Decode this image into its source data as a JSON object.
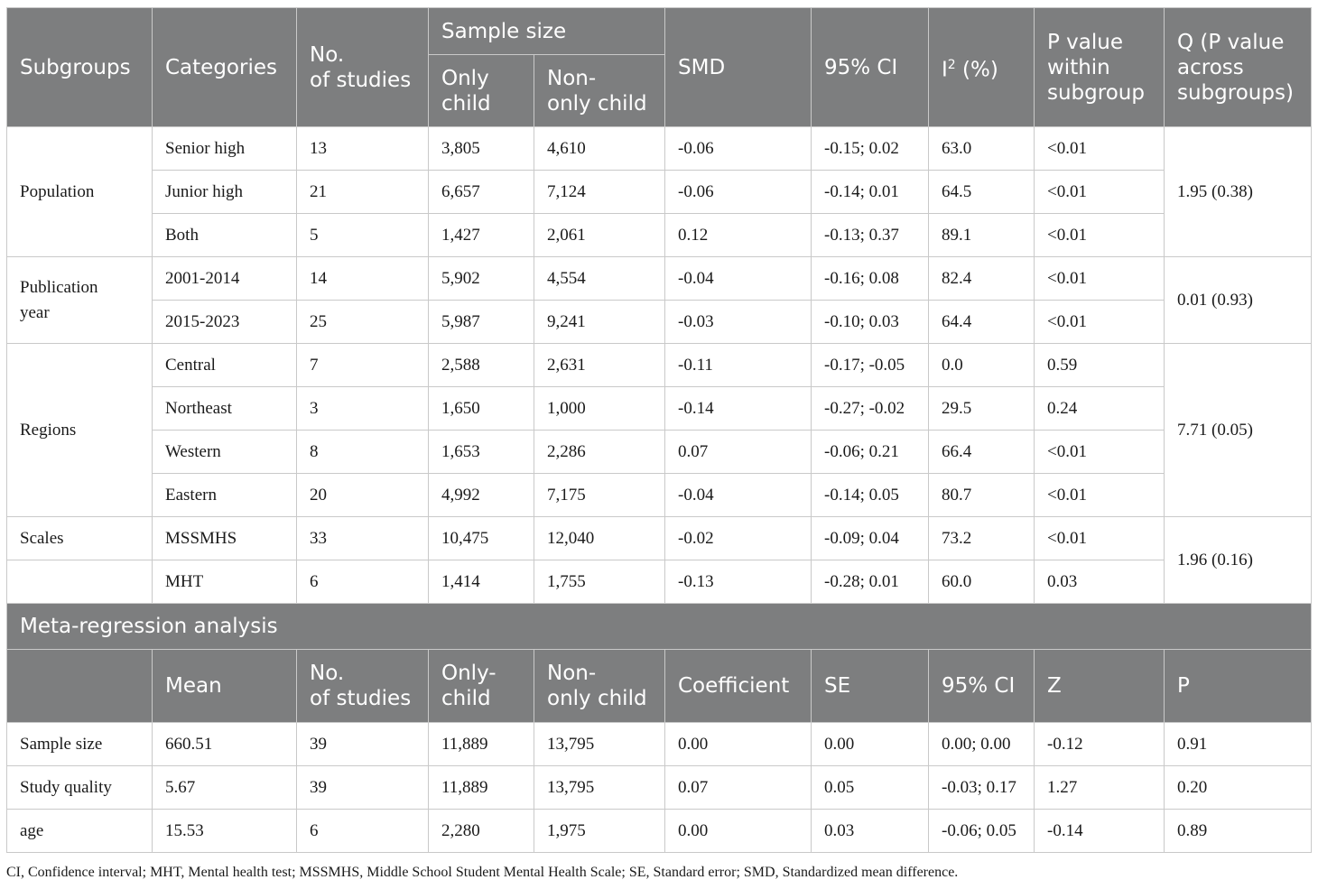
{
  "subgroup_header": {
    "subgroups": "Subgroups",
    "categories": "Categories",
    "no_of_studies": [
      "No.",
      "of studies"
    ],
    "sample_size": "Sample size",
    "only_child": [
      "Only",
      "child"
    ],
    "non_only_child": [
      "Non-",
      "only child"
    ],
    "smd": "SMD",
    "ci95": "95% CI",
    "i2": "I",
    "i2_sup": "2",
    "i2_unit": " (%)",
    "p_within": [
      "P value",
      "within",
      "subgroup"
    ],
    "q_across": [
      "Q (P value",
      "across",
      "subgroups)"
    ]
  },
  "subgroup_rows": [
    {
      "group": "Population",
      "category": "Senior high",
      "studies": "13",
      "only": "3,805",
      "non_only": "4,610",
      "smd": "-0.06",
      "ci": "-0.15; 0.02",
      "i2": "63.0",
      "p": "<0.01",
      "q": "1.95 (0.38)"
    },
    {
      "group": "",
      "category": "Junior high",
      "studies": "21",
      "only": "6,657",
      "non_only": "7,124",
      "smd": "-0.06",
      "ci": "-0.14; 0.01",
      "i2": "64.5",
      "p": "<0.01",
      "q": ""
    },
    {
      "group": "",
      "category": "Both",
      "studies": "5",
      "only": "1,427",
      "non_only": "2,061",
      "smd": "0.12",
      "ci": "-0.13; 0.37",
      "i2": "89.1",
      "p": "<0.01",
      "q": ""
    },
    {
      "group": "Publication year",
      "category": "2001-2014",
      "studies": "14",
      "only": "5,902",
      "non_only": "4,554",
      "smd": "-0.04",
      "ci": "-0.16; 0.08",
      "i2": "82.4",
      "p": "<0.01",
      "q": "0.01 (0.93)"
    },
    {
      "group": "",
      "category": "2015-2023",
      "studies": "25",
      "only": "5,987",
      "non_only": "9,241",
      "smd": "-0.03",
      "ci": "-0.10; 0.03",
      "i2": "64.4",
      "p": "<0.01",
      "q": ""
    },
    {
      "group": "Regions",
      "category": "Central",
      "studies": "7",
      "only": "2,588",
      "non_only": "2,631",
      "smd": "-0.11",
      "ci": "-0.17; -0.05",
      "i2": "0.0",
      "p": "0.59",
      "q": "7.71 (0.05)"
    },
    {
      "group": "",
      "category": "Northeast",
      "studies": "3",
      "only": "1,650",
      "non_only": "1,000",
      "smd": "-0.14",
      "ci": "-0.27; -0.02",
      "i2": "29.5",
      "p": "0.24",
      "q": ""
    },
    {
      "group": "",
      "category": "Western",
      "studies": "8",
      "only": "1,653",
      "non_only": "2,286",
      "smd": "0.07",
      "ci": "-0.06; 0.21",
      "i2": "66.4",
      "p": "<0.01",
      "q": ""
    },
    {
      "group": "",
      "category": "Eastern",
      "studies": "20",
      "only": "4,992",
      "non_only": "7,175",
      "smd": "-0.04",
      "ci": "-0.14; 0.05",
      "i2": "80.7",
      "p": "<0.01",
      "q": ""
    },
    {
      "group": "Scales",
      "category": "MSSMHS",
      "studies": "33",
      "only": "10,475",
      "non_only": "12,040",
      "smd": "-0.02",
      "ci": "-0.09; 0.04",
      "i2": "73.2",
      "p": "<0.01",
      "q": "1.96 (0.16)"
    },
    {
      "group": "",
      "category": "MHT",
      "studies": "6",
      "only": "1,414",
      "non_only": "1,755",
      "smd": "-0.13",
      "ci": "-0.28; 0.01",
      "i2": "60.0",
      "p": "0.03",
      "q": ""
    }
  ],
  "meta_title": "Meta-regression analysis",
  "meta_header": {
    "blank": "",
    "mean": "Mean",
    "no_of_studies": [
      "No.",
      "of studies"
    ],
    "only_child": [
      "Only-",
      "child"
    ],
    "non_only_child": [
      "Non-",
      "only child"
    ],
    "coefficient": "Coefficient",
    "se": "SE",
    "ci95": "95% CI",
    "z": "Z",
    "p": "P"
  },
  "meta_rows": [
    {
      "label": "Sample size",
      "mean": "660.51",
      "studies": "39",
      "only": "11,889",
      "non_only": "13,795",
      "coef": "0.00",
      "se": "0.00",
      "ci": "0.00; 0.00",
      "z": "-0.12",
      "p": "0.91"
    },
    {
      "label": "Study quality",
      "mean": "5.67",
      "studies": "39",
      "only": "11,889",
      "non_only": "13,795",
      "coef": "0.07",
      "se": "0.05",
      "ci": "-0.03; 0.17",
      "z": "1.27",
      "p": "0.20"
    },
    {
      "label": "age",
      "mean": "15.53",
      "studies": "6",
      "only": "2,280",
      "non_only": "1,975",
      "coef": "0.00",
      "se": "0.03",
      "ci": "-0.06; 0.05",
      "z": "-0.14",
      "p": "0.89"
    }
  ],
  "footnote": "CI, Confidence interval; MHT, Mental health test; MSSMHS, Middle School Student Mental Health Scale; SE, Standard error; SMD, Standardized mean difference."
}
